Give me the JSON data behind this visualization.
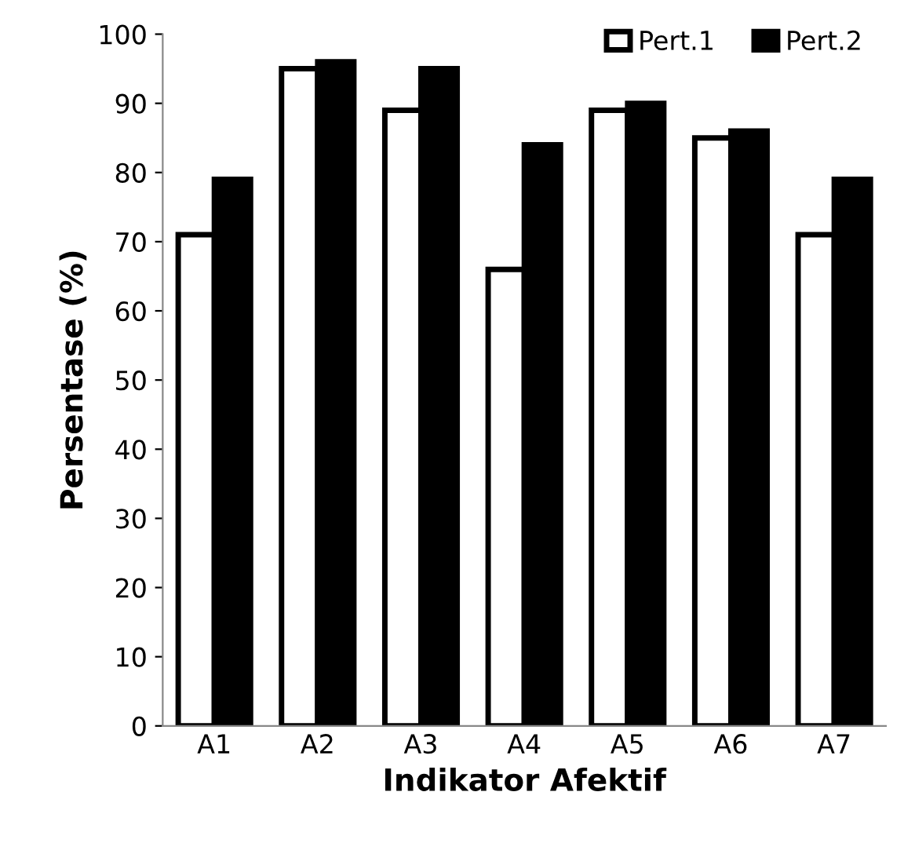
{
  "chart_data": {
    "type": "bar",
    "xlabel": "Indikator Afektif",
    "ylabel": "Persentase (%)",
    "categories": [
      "A1",
      "A2",
      "A3",
      "A4",
      "A5",
      "A6",
      "A7"
    ],
    "series": [
      {
        "name": "Pert.1",
        "color": "#ffffff",
        "values": [
          71,
          95,
          89,
          66,
          89,
          85,
          71
        ]
      },
      {
        "name": "Pert.2",
        "color": "#000000",
        "values": [
          79,
          96,
          95,
          84,
          90,
          86,
          79
        ]
      }
    ],
    "ylim": [
      0,
      100
    ],
    "yticks": [
      0,
      10,
      20,
      30,
      40,
      50,
      60,
      70,
      80,
      90,
      100
    ],
    "grid": false,
    "legend": "top right"
  }
}
